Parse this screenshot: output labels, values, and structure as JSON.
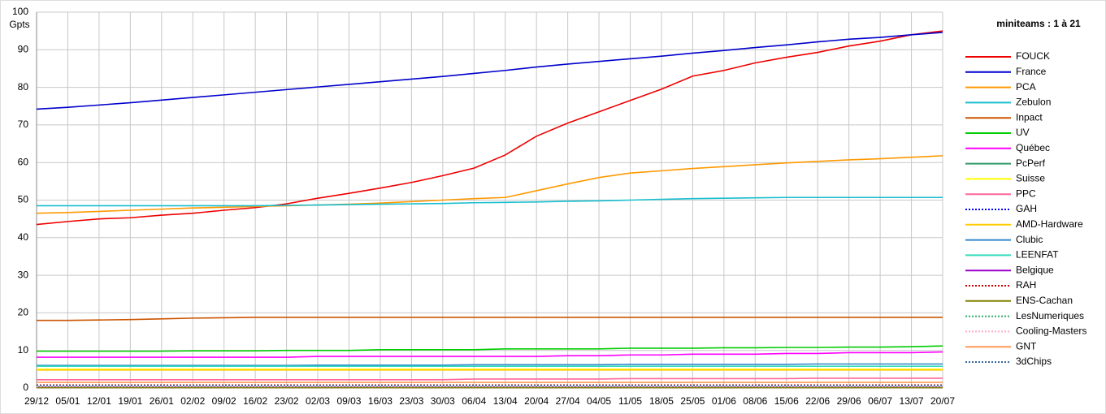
{
  "chart_data": {
    "type": "line",
    "y_label": "Gpts",
    "legend_title": "miniteams : 1 à 21",
    "categories": [
      "29/12",
      "05/01",
      "12/01",
      "19/01",
      "26/01",
      "02/02",
      "09/02",
      "16/02",
      "23/02",
      "02/03",
      "09/03",
      "16/03",
      "23/03",
      "30/03",
      "06/04",
      "13/04",
      "20/04",
      "27/04",
      "04/05",
      "11/05",
      "18/05",
      "25/05",
      "01/06",
      "08/06",
      "15/06",
      "22/06",
      "29/06",
      "06/07",
      "13/07",
      "20/07"
    ],
    "ylim": [
      0,
      100
    ],
    "yticks": [
      0,
      10,
      20,
      30,
      40,
      50,
      60,
      70,
      80,
      90,
      100
    ],
    "grid": true,
    "legend": "right",
    "series": [
      {
        "name": "FOUCK",
        "color": "#ee0000",
        "style": "solid",
        "values": [
          43.5,
          44.3,
          45,
          45.3,
          46,
          46.5,
          47.3,
          48,
          49,
          50.5,
          51.8,
          53.2,
          54.7,
          56.5,
          58.5,
          62,
          67,
          70.5,
          73.5,
          76.5,
          79.5,
          83,
          84.5,
          86.5,
          88,
          89.3,
          91,
          92.3,
          94,
          95
        ]
      },
      {
        "name": "France",
        "color": "#0000cc",
        "style": "solid",
        "values": [
          74.2,
          74.7,
          75.3,
          75.9,
          76.6,
          77.3,
          78,
          78.7,
          79.4,
          80.1,
          80.8,
          81.5,
          82.2,
          82.9,
          83.7,
          84.5,
          85.4,
          86.2,
          86.9,
          87.6,
          88.3,
          89.1,
          89.8,
          90.6,
          91.3,
          92.1,
          92.8,
          93.3,
          94,
          94.6
        ]
      },
      {
        "name": "PCA",
        "color": "#ff9900",
        "style": "solid",
        "values": [
          46.5,
          46.7,
          47,
          47.3,
          47.6,
          47.9,
          48.1,
          48.3,
          48.5,
          48.7,
          48.9,
          49.2,
          49.6,
          50,
          50.4,
          50.7,
          52.5,
          54.3,
          56,
          57.2,
          57.8,
          58.4,
          58.9,
          59.4,
          59.9,
          60.3,
          60.7,
          61,
          61.4,
          61.8
        ]
      },
      {
        "name": "Zebulon",
        "color": "#17becf",
        "style": "solid",
        "values": [
          48.5,
          48.5,
          48.5,
          48.5,
          48.5,
          48.5,
          48.5,
          48.5,
          48.6,
          48.7,
          48.8,
          48.9,
          49,
          49.1,
          49.3,
          49.4,
          49.5,
          49.7,
          49.8,
          50,
          50.2,
          50.4,
          50.5,
          50.6,
          50.7,
          50.7,
          50.7,
          50.7,
          50.7,
          50.7
        ]
      },
      {
        "name": "Inpact",
        "color": "#cc5500",
        "style": "solid",
        "values": [
          18,
          18,
          18.1,
          18.2,
          18.4,
          18.6,
          18.7,
          18.8,
          18.8,
          18.8,
          18.8,
          18.8,
          18.8,
          18.8,
          18.8,
          18.8,
          18.8,
          18.8,
          18.8,
          18.8,
          18.8,
          18.8,
          18.8,
          18.8,
          18.8,
          18.8,
          18.8,
          18.8,
          18.8,
          18.8
        ]
      },
      {
        "name": "UV",
        "color": "#00cc00",
        "style": "solid",
        "values": [
          9.8,
          9.8,
          9.8,
          9.8,
          9.8,
          9.9,
          9.9,
          9.9,
          10,
          10,
          10,
          10.2,
          10.2,
          10.2,
          10.2,
          10.4,
          10.4,
          10.4,
          10.4,
          10.6,
          10.6,
          10.6,
          10.7,
          10.7,
          10.8,
          10.8,
          10.9,
          10.9,
          11,
          11.2
        ]
      },
      {
        "name": "Québec",
        "color": "#ff00ff",
        "style": "solid",
        "values": [
          8.2,
          8.2,
          8.2,
          8.2,
          8.2,
          8.2,
          8.2,
          8.2,
          8.2,
          8.4,
          8.4,
          8.4,
          8.4,
          8.4,
          8.4,
          8.4,
          8.4,
          8.6,
          8.6,
          8.8,
          8.8,
          9,
          9,
          9,
          9.2,
          9.2,
          9.4,
          9.4,
          9.4,
          9.6
        ]
      },
      {
        "name": "PcPerf",
        "color": "#339966",
        "style": "solid",
        "values": [
          0.3,
          0.3,
          0.3,
          0.3,
          0.3,
          0.3,
          0.3,
          0.3,
          0.3,
          0.3,
          0.3,
          0.3,
          0.3,
          0.3,
          0.3,
          0.3,
          0.3,
          0.3,
          0.3,
          0.3,
          0.3,
          0.3,
          0.3,
          0.3,
          0.3,
          0.3,
          0.3,
          0.3,
          0.3,
          0.3
        ]
      },
      {
        "name": "Suisse",
        "color": "#ffff00",
        "style": "solid",
        "values": [
          5,
          5,
          5,
          5,
          5,
          5,
          5,
          5,
          5,
          5,
          5,
          5,
          5,
          5,
          5,
          5,
          5,
          5,
          5,
          5,
          5,
          5,
          5,
          5,
          5,
          5,
          5,
          5,
          5,
          5
        ]
      },
      {
        "name": "PPC",
        "color": "#ff6699",
        "style": "solid",
        "values": [
          2.2,
          2.2,
          2.2,
          2.2,
          2.2,
          2.2,
          2.2,
          2.2,
          2.2,
          2.2,
          2.2,
          2.2,
          2.2,
          2.2,
          2.4,
          2.4,
          2.4,
          2.4,
          2.4,
          2.5,
          2.5,
          2.5,
          2.5,
          2.5,
          2.5,
          2.6,
          2.6,
          2.6,
          2.6,
          2.6
        ]
      },
      {
        "name": "GAH",
        "color": "#0000ff",
        "style": "dotted",
        "values": [
          0.5,
          0.5,
          0.5,
          0.5,
          0.5,
          0.5,
          0.5,
          0.5,
          0.5,
          0.5,
          0.5,
          0.5,
          0.5,
          0.5,
          0.5,
          0.5,
          0.5,
          0.5,
          0.5,
          0.5,
          0.5,
          0.5,
          0.5,
          0.5,
          0.5,
          0.5,
          0.5,
          0.5,
          0.5,
          0.5
        ]
      },
      {
        "name": "AMD-Hardware",
        "color": "#ffcc00",
        "style": "solid",
        "values": [
          4.8,
          4.8,
          4.8,
          4.8,
          4.8,
          4.8,
          4.8,
          4.8,
          4.8,
          4.8,
          4.8,
          4.8,
          4.8,
          4.8,
          4.8,
          4.8,
          4.8,
          4.8,
          4.8,
          4.8,
          4.8,
          4.8,
          4.8,
          4.8,
          4.8,
          4.8,
          4.8,
          4.8,
          4.8,
          4.8
        ]
      },
      {
        "name": "Clubic",
        "color": "#3388cc",
        "style": "solid",
        "values": [
          6,
          6,
          6,
          6,
          6,
          6,
          6,
          6,
          6,
          6.1,
          6.1,
          6.1,
          6.1,
          6.1,
          6.2,
          6.2,
          6.2,
          6.2,
          6.2,
          6.3,
          6.3,
          6.3,
          6.3,
          6.3,
          6.3,
          6.4,
          6.4,
          6.4,
          6.4,
          6.4
        ]
      },
      {
        "name": "LEENFAT",
        "color": "#33ddbb",
        "style": "solid",
        "values": [
          5.8,
          5.8,
          5.8,
          5.8,
          5.8,
          5.8,
          5.8,
          5.8,
          5.8,
          5.8,
          5.8,
          5.8,
          5.8,
          5.8,
          5.8,
          5.8,
          5.8,
          5.8,
          5.8,
          5.8,
          5.8,
          5.8,
          5.8,
          5.8,
          5.8,
          5.8,
          5.8,
          5.8,
          5.8,
          5.8
        ]
      },
      {
        "name": "Belgique",
        "color": "#9900cc",
        "style": "solid",
        "values": [
          0.2,
          0.2,
          0.2,
          0.2,
          0.2,
          0.2,
          0.2,
          0.2,
          0.2,
          0.2,
          0.2,
          0.2,
          0.2,
          0.2,
          0.2,
          0.2,
          0.2,
          0.2,
          0.2,
          0.2,
          0.2,
          0.2,
          0.2,
          0.2,
          0.2,
          0.2,
          0.2,
          0.2,
          0.2,
          0.2
        ]
      },
      {
        "name": "RAH",
        "color": "#cc0000",
        "style": "dotted",
        "values": [
          0.8,
          0.8,
          0.8,
          0.8,
          0.8,
          0.8,
          0.8,
          0.8,
          0.8,
          0.8,
          0.8,
          0.8,
          0.8,
          0.8,
          0.8,
          0.8,
          0.8,
          0.8,
          0.8,
          0.8,
          0.8,
          0.8,
          0.8,
          0.8,
          0.8,
          0.8,
          0.8,
          0.8,
          0.8,
          0.8
        ]
      },
      {
        "name": "ENS-Cachan",
        "color": "#808000",
        "style": "solid",
        "values": [
          0.1,
          0.1,
          0.1,
          0.1,
          0.1,
          0.1,
          0.1,
          0.1,
          0.1,
          0.1,
          0.1,
          0.1,
          0.1,
          0.1,
          0.1,
          0.1,
          0.1,
          0.1,
          0.1,
          0.1,
          0.1,
          0.1,
          0.1,
          0.1,
          0.1,
          0.1,
          0.1,
          0.1,
          0.1,
          0.1
        ]
      },
      {
        "name": "LesNumeriques",
        "color": "#33aa66",
        "style": "dotted",
        "values": [
          0.6,
          0.6,
          0.6,
          0.6,
          0.6,
          0.6,
          0.6,
          0.6,
          0.6,
          0.6,
          0.6,
          0.6,
          0.6,
          0.6,
          0.6,
          0.6,
          0.6,
          0.6,
          0.6,
          0.6,
          0.6,
          0.6,
          0.6,
          0.6,
          0.6,
          0.6,
          0.6,
          0.6,
          0.6,
          0.6
        ]
      },
      {
        "name": "Cooling-Masters",
        "color": "#ffaacc",
        "style": "dotted",
        "values": [
          0.4,
          0.4,
          0.4,
          0.4,
          0.4,
          0.4,
          0.4,
          0.4,
          0.4,
          0.4,
          0.4,
          0.4,
          0.4,
          0.4,
          0.4,
          0.4,
          0.4,
          0.4,
          0.4,
          0.4,
          0.4,
          0.4,
          0.4,
          0.4,
          0.4,
          0.4,
          0.4,
          0.4,
          0.4,
          0.4
        ]
      },
      {
        "name": "GNT",
        "color": "#ff9955",
        "style": "solid",
        "values": [
          1.5,
          1.5,
          1.5,
          1.5,
          1.5,
          1.5,
          1.5,
          1.5,
          1.5,
          1.5,
          1.5,
          1.5,
          1.5,
          1.5,
          1.5,
          1.5,
          1.5,
          1.5,
          1.5,
          1.5,
          1.5,
          1.5,
          1.5,
          1.5,
          1.5,
          1.5,
          1.5,
          1.5,
          1.5,
          1.5
        ]
      },
      {
        "name": "3dChips",
        "color": "#336699",
        "style": "dotted",
        "values": [
          0.7,
          0.7,
          0.7,
          0.7,
          0.7,
          0.7,
          0.7,
          0.7,
          0.7,
          0.7,
          0.7,
          0.7,
          0.7,
          0.7,
          0.7,
          0.7,
          0.7,
          0.7,
          0.7,
          0.7,
          0.7,
          0.7,
          0.7,
          0.7,
          0.7,
          0.7,
          0.7,
          0.7,
          0.7,
          0.7
        ]
      }
    ]
  }
}
